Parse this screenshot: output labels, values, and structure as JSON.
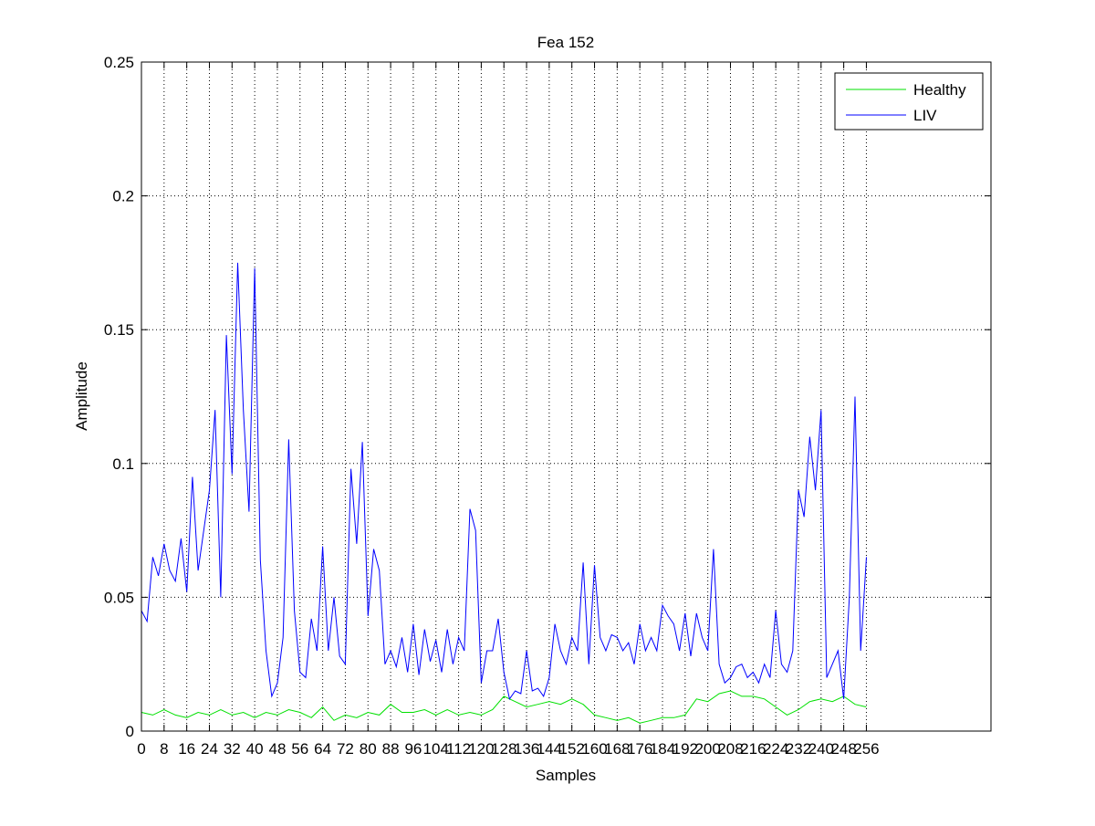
{
  "chart_data": {
    "type": "line",
    "title": "Fea 152",
    "xlabel": "Samples",
    "ylabel": "Amplitude",
    "xlim": [
      0,
      300
    ],
    "ylim": [
      0,
      0.25
    ],
    "grid": true,
    "legend_position": "top-right",
    "x_ticks": [
      0,
      8,
      16,
      24,
      32,
      40,
      48,
      56,
      64,
      72,
      80,
      88,
      96,
      104,
      112,
      120,
      128,
      136,
      144,
      152,
      160,
      168,
      176,
      184,
      192,
      200,
      208,
      216,
      224,
      232,
      240,
      248,
      256
    ],
    "y_ticks": [
      0,
      0.05,
      0.1,
      0.15,
      0.2,
      0.25
    ],
    "y_tick_labels": [
      "0",
      "0.05",
      "0.1",
      "0.15",
      "0.2",
      "0.25"
    ],
    "series": [
      {
        "name": "Healthy",
        "color": "#00e000",
        "x": [
          0,
          4,
          8,
          12,
          16,
          20,
          24,
          28,
          32,
          36,
          40,
          44,
          48,
          52,
          56,
          60,
          64,
          68,
          72,
          76,
          80,
          84,
          88,
          92,
          96,
          100,
          104,
          108,
          112,
          116,
          120,
          124,
          128,
          132,
          136,
          140,
          144,
          148,
          152,
          156,
          160,
          164,
          168,
          172,
          176,
          180,
          184,
          188,
          192,
          196,
          200,
          204,
          208,
          212,
          216,
          220,
          224,
          228,
          232,
          236,
          240,
          244,
          248,
          252,
          256
        ],
        "values": [
          0.007,
          0.006,
          0.008,
          0.006,
          0.005,
          0.007,
          0.006,
          0.008,
          0.006,
          0.007,
          0.005,
          0.007,
          0.006,
          0.008,
          0.007,
          0.005,
          0.009,
          0.004,
          0.006,
          0.005,
          0.007,
          0.006,
          0.01,
          0.007,
          0.007,
          0.008,
          0.006,
          0.008,
          0.006,
          0.007,
          0.006,
          0.008,
          0.013,
          0.011,
          0.009,
          0.01,
          0.011,
          0.01,
          0.012,
          0.01,
          0.006,
          0.005,
          0.004,
          0.005,
          0.003,
          0.004,
          0.005,
          0.005,
          0.006,
          0.012,
          0.011,
          0.014,
          0.015,
          0.013,
          0.013,
          0.012,
          0.009,
          0.006,
          0.008,
          0.011,
          0.012,
          0.011,
          0.013,
          0.01,
          0.009
        ]
      },
      {
        "name": "LIV",
        "color": "#0000ff",
        "x": [
          0,
          2,
          4,
          6,
          8,
          10,
          12,
          14,
          16,
          18,
          20,
          22,
          24,
          26,
          28,
          30,
          32,
          34,
          36,
          38,
          40,
          42,
          44,
          46,
          48,
          50,
          52,
          54,
          56,
          58,
          60,
          62,
          64,
          66,
          68,
          70,
          72,
          74,
          76,
          78,
          80,
          82,
          84,
          86,
          88,
          90,
          92,
          94,
          96,
          98,
          100,
          102,
          104,
          106,
          108,
          110,
          112,
          114,
          116,
          118,
          120,
          122,
          124,
          126,
          128,
          130,
          132,
          134,
          136,
          138,
          140,
          142,
          144,
          146,
          148,
          150,
          152,
          154,
          156,
          158,
          160,
          162,
          164,
          166,
          168,
          170,
          172,
          174,
          176,
          178,
          180,
          182,
          184,
          186,
          188,
          190,
          192,
          194,
          196,
          198,
          200,
          202,
          204,
          206,
          208,
          210,
          212,
          214,
          216,
          218,
          220,
          222,
          224,
          226,
          228,
          230,
          232,
          234,
          236,
          238,
          240,
          242,
          244,
          246,
          248,
          250,
          252,
          254,
          256
        ],
        "values": [
          0.045,
          0.041,
          0.065,
          0.058,
          0.07,
          0.06,
          0.056,
          0.072,
          0.052,
          0.095,
          0.06,
          0.075,
          0.09,
          0.12,
          0.05,
          0.148,
          0.096,
          0.175,
          0.12,
          0.082,
          0.173,
          0.064,
          0.03,
          0.013,
          0.018,
          0.035,
          0.109,
          0.045,
          0.022,
          0.02,
          0.042,
          0.03,
          0.069,
          0.03,
          0.05,
          0.028,
          0.025,
          0.098,
          0.07,
          0.108,
          0.043,
          0.068,
          0.06,
          0.025,
          0.03,
          0.024,
          0.035,
          0.022,
          0.04,
          0.021,
          0.038,
          0.026,
          0.034,
          0.022,
          0.038,
          0.025,
          0.035,
          0.03,
          0.083,
          0.075,
          0.018,
          0.03,
          0.03,
          0.042,
          0.022,
          0.012,
          0.015,
          0.014,
          0.03,
          0.015,
          0.016,
          0.013,
          0.02,
          0.04,
          0.03,
          0.025,
          0.035,
          0.03,
          0.063,
          0.025,
          0.062,
          0.035,
          0.03,
          0.036,
          0.035,
          0.03,
          0.033,
          0.025,
          0.04,
          0.03,
          0.035,
          0.03,
          0.047,
          0.043,
          0.04,
          0.03,
          0.044,
          0.028,
          0.044,
          0.035,
          0.03,
          0.068,
          0.025,
          0.018,
          0.02,
          0.024,
          0.025,
          0.02,
          0.022,
          0.018,
          0.025,
          0.02,
          0.045,
          0.025,
          0.022,
          0.03,
          0.09,
          0.08,
          0.11,
          0.09,
          0.12,
          0.02,
          0.025,
          0.03,
          0.012,
          0.05,
          0.125,
          0.03,
          0.065
        ]
      }
    ]
  }
}
